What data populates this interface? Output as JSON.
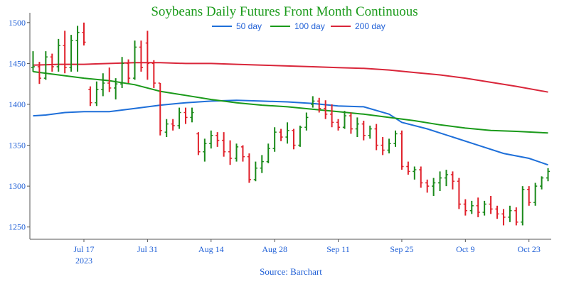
{
  "chart_data": {
    "type": "ohlc-line",
    "title": "Soybeans Daily Futures Front Month Continuous",
    "source": "Source: Barchart",
    "xlabel": "",
    "ylabel": "",
    "ylim": [
      1235,
      1512
    ],
    "y_ticks": [
      1250,
      1300,
      1350,
      1400,
      1450,
      1500
    ],
    "x_ticks": [
      {
        "label": "Jul 17",
        "sublabel": "2023",
        "index": 8
      },
      {
        "label": "Jul 31",
        "sublabel": "",
        "index": 18
      },
      {
        "label": "Aug 14",
        "sublabel": "",
        "index": 28
      },
      {
        "label": "Aug 28",
        "sublabel": "",
        "index": 38
      },
      {
        "label": "Sep 11",
        "sublabel": "",
        "index": 48
      },
      {
        "label": "Sep 25",
        "sublabel": "",
        "index": 58
      },
      {
        "label": "Oct 9",
        "sublabel": "",
        "index": 68
      },
      {
        "label": "Oct 23",
        "sublabel": "",
        "index": 78
      }
    ],
    "x_range": [
      -0.5,
      81.5
    ],
    "legend": {
      "placement": "top-center"
    },
    "colors": {
      "up": "#1a8a1a",
      "down": "#e0202a",
      "ma50": "#1e6fd9",
      "ma100": "#1a9a1a",
      "ma200": "#d9263a",
      "text": "#1f5fd6",
      "title": "#1a9a1a"
    },
    "bars": [
      [
        1445,
        1465,
        1440,
        1446
      ],
      [
        1446,
        1452,
        1425,
        1432
      ],
      [
        1432,
        1465,
        1430,
        1458
      ],
      [
        1458,
        1462,
        1440,
        1446
      ],
      [
        1446,
        1480,
        1440,
        1472
      ],
      [
        1472,
        1490,
        1438,
        1445
      ],
      [
        1445,
        1485,
        1440,
        1478
      ],
      [
        1478,
        1496,
        1440,
        1488
      ],
      [
        1488,
        1500,
        1472,
        1476
      ],
      [
        1418,
        1422,
        1398,
        1402
      ],
      [
        1402,
        1428,
        1398,
        1418
      ],
      [
        1418,
        1438,
        1410,
        1426
      ],
      [
        1426,
        1445,
        1415,
        1420
      ],
      [
        1420,
        1432,
        1406,
        1425
      ],
      [
        1425,
        1458,
        1420,
        1450
      ],
      [
        1450,
        1455,
        1426,
        1432
      ],
      [
        1432,
        1478,
        1430,
        1470
      ],
      [
        1470,
        1478,
        1440,
        1445
      ],
      [
        1475,
        1490,
        1430,
        1450
      ],
      [
        1450,
        1454,
        1420,
        1426
      ],
      [
        1426,
        1426,
        1362,
        1368
      ],
      [
        1366,
        1382,
        1360,
        1376
      ],
      [
        1376,
        1382,
        1368,
        1374
      ],
      [
        1374,
        1396,
        1370,
        1390
      ],
      [
        1390,
        1396,
        1376,
        1384
      ],
      [
        1384,
        1396,
        1378,
        1390
      ],
      [
        1364,
        1366,
        1338,
        1342
      ],
      [
        1342,
        1358,
        1330,
        1352
      ],
      [
        1352,
        1368,
        1346,
        1362
      ],
      [
        1362,
        1366,
        1348,
        1356
      ],
      [
        1356,
        1366,
        1336,
        1342
      ],
      [
        1342,
        1356,
        1326,
        1334
      ],
      [
        1334,
        1352,
        1330,
        1348
      ],
      [
        1348,
        1350,
        1330,
        1336
      ],
      [
        1336,
        1340,
        1304,
        1308
      ],
      [
        1308,
        1330,
        1306,
        1322
      ],
      [
        1322,
        1338,
        1316,
        1330
      ],
      [
        1330,
        1352,
        1328,
        1346
      ],
      [
        1346,
        1372,
        1342,
        1366
      ],
      [
        1366,
        1370,
        1355,
        1360
      ],
      [
        1360,
        1378,
        1352,
        1368
      ],
      [
        1368,
        1370,
        1345,
        1350
      ],
      [
        1350,
        1374,
        1348,
        1372
      ],
      [
        1372,
        1390,
        1368,
        1384
      ],
      [
        1400,
        1410,
        1396,
        1404
      ],
      [
        1404,
        1408,
        1390,
        1395
      ],
      [
        1395,
        1405,
        1382,
        1388
      ],
      [
        1388,
        1400,
        1372,
        1378
      ],
      [
        1378,
        1382,
        1368,
        1372
      ],
      [
        1372,
        1392,
        1370,
        1386
      ],
      [
        1386,
        1390,
        1364,
        1370
      ],
      [
        1370,
        1384,
        1360,
        1376
      ],
      [
        1376,
        1380,
        1356,
        1362
      ],
      [
        1362,
        1374,
        1358,
        1370
      ],
      [
        1370,
        1376,
        1344,
        1350
      ],
      [
        1350,
        1360,
        1338,
        1344
      ],
      [
        1344,
        1358,
        1340,
        1352
      ],
      [
        1352,
        1368,
        1348,
        1364
      ],
      [
        1364,
        1368,
        1320,
        1324
      ],
      [
        1324,
        1330,
        1314,
        1318
      ],
      [
        1318,
        1324,
        1308,
        1320
      ],
      [
        1320,
        1324,
        1298,
        1304
      ],
      [
        1304,
        1308,
        1292,
        1300
      ],
      [
        1300,
        1310,
        1288,
        1304
      ],
      [
        1304,
        1318,
        1294,
        1310
      ],
      [
        1310,
        1320,
        1300,
        1314
      ],
      [
        1314,
        1318,
        1296,
        1306
      ],
      [
        1306,
        1310,
        1272,
        1278
      ],
      [
        1278,
        1284,
        1264,
        1270
      ],
      [
        1270,
        1282,
        1266,
        1276
      ],
      [
        1276,
        1286,
        1262,
        1268
      ],
      [
        1268,
        1282,
        1264,
        1278
      ],
      [
        1278,
        1288,
        1266,
        1272
      ],
      [
        1272,
        1276,
        1260,
        1266
      ],
      [
        1266,
        1272,
        1252,
        1262
      ],
      [
        1262,
        1276,
        1256,
        1270
      ],
      [
        1270,
        1274,
        1252,
        1256
      ],
      [
        1256,
        1300,
        1252,
        1296
      ],
      [
        1296,
        1300,
        1276,
        1280
      ],
      [
        1280,
        1304,
        1276,
        1300
      ],
      [
        1300,
        1312,
        1296,
        1310
      ],
      [
        1310,
        1322,
        1306,
        1318
      ]
    ],
    "series": [
      {
        "name": "50 day",
        "points": [
          [
            0,
            1386
          ],
          [
            2,
            1387
          ],
          [
            5,
            1390
          ],
          [
            8,
            1391
          ],
          [
            12,
            1391
          ],
          [
            16,
            1395
          ],
          [
            20,
            1399
          ],
          [
            24,
            1402
          ],
          [
            28,
            1404
          ],
          [
            32,
            1405
          ],
          [
            36,
            1404
          ],
          [
            40,
            1403
          ],
          [
            44,
            1401
          ],
          [
            48,
            1398
          ],
          [
            52,
            1397
          ],
          [
            56,
            1388
          ],
          [
            58,
            1378
          ],
          [
            62,
            1370
          ],
          [
            66,
            1360
          ],
          [
            70,
            1350
          ],
          [
            74,
            1340
          ],
          [
            78,
            1334
          ],
          [
            81,
            1326
          ]
        ]
      },
      {
        "name": "100 day",
        "points": [
          [
            0,
            1440
          ],
          [
            4,
            1436
          ],
          [
            8,
            1432
          ],
          [
            12,
            1429
          ],
          [
            16,
            1424
          ],
          [
            20,
            1416
          ],
          [
            24,
            1411
          ],
          [
            28,
            1406
          ],
          [
            32,
            1402
          ],
          [
            36,
            1399
          ],
          [
            40,
            1397
          ],
          [
            44,
            1394
          ],
          [
            48,
            1391
          ],
          [
            52,
            1388
          ],
          [
            56,
            1384
          ],
          [
            60,
            1380
          ],
          [
            64,
            1375
          ],
          [
            68,
            1371
          ],
          [
            72,
            1368
          ],
          [
            76,
            1367
          ],
          [
            81,
            1365
          ]
        ]
      },
      {
        "name": "200 day",
        "points": [
          [
            0,
            1448
          ],
          [
            4,
            1449
          ],
          [
            8,
            1449
          ],
          [
            12,
            1450
          ],
          [
            16,
            1451
          ],
          [
            20,
            1451
          ],
          [
            24,
            1450
          ],
          [
            28,
            1450
          ],
          [
            32,
            1449
          ],
          [
            36,
            1448
          ],
          [
            40,
            1447
          ],
          [
            44,
            1446
          ],
          [
            48,
            1445
          ],
          [
            52,
            1444
          ],
          [
            56,
            1442
          ],
          [
            60,
            1439
          ],
          [
            64,
            1436
          ],
          [
            68,
            1432
          ],
          [
            72,
            1427
          ],
          [
            76,
            1422
          ],
          [
            81,
            1415
          ]
        ]
      }
    ]
  }
}
